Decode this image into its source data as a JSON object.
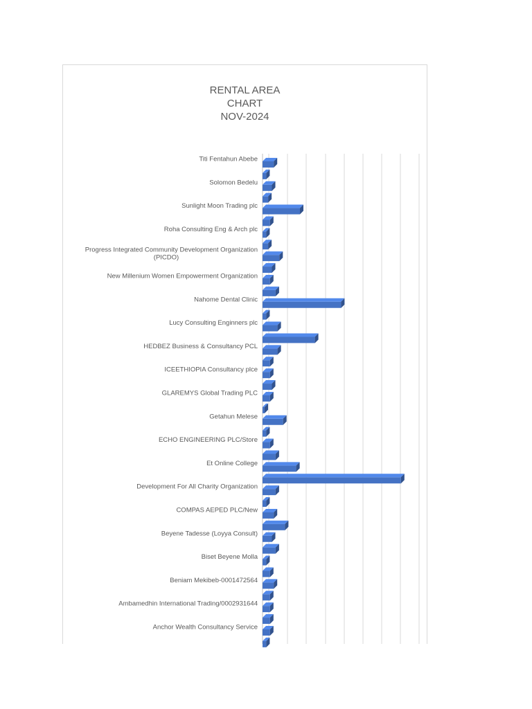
{
  "chart_data": {
    "type": "bar",
    "orientation": "horizontal",
    "style": "3d-clustered-bar",
    "title": [
      "RENTAL AREA",
      "CHART",
      "NOV-2024"
    ],
    "xlabel": "",
    "ylabel": "",
    "grid": true,
    "legend": "none",
    "xlim": [
      0,
      85
    ],
    "categories": [
      "Titi Fentahun Abebe",
      "",
      "Solomon Bedelu",
      "",
      "Sunlight Moon Trading plc",
      "",
      "Roha Consulting Eng & Arch plc",
      "",
      "Progress Integrated Community Development Organization (PICDO)",
      "",
      "New Millenium Women Empowerment Organization",
      "",
      "Nahome Dental Clinic",
      "",
      "Lucy Consulting Enginners plc",
      "",
      "HEDBEZ Business & Consultancy PCL",
      "",
      "ICEETHIOPIA Consultancy plce",
      "",
      "GLAREMYS Global Trading PLC",
      "",
      "Getahun Melese",
      "",
      "ECHO ENGINEERING PLC/Store",
      "",
      "Et Online College",
      "",
      "Development For All Charity Organization",
      "",
      "COMPAS AEPED PLC/New",
      "",
      "Beyene Tadesse (Loyya Consult)",
      "",
      "Biset Beyene Molla",
      "",
      "Beniam Mekibeb-0001472564",
      "",
      "Ambamedhin International Trading/0002931644",
      "",
      "Anchor Wealth Consultancy Service",
      ""
    ],
    "values": [
      6,
      2,
      5,
      3,
      20,
      4,
      2,
      3,
      9,
      5,
      4,
      7,
      42,
      2,
      8,
      28,
      8,
      4,
      4,
      5,
      4,
      1,
      11,
      2,
      4,
      7,
      18,
      74,
      7,
      2,
      6,
      12,
      5,
      7,
      2,
      4,
      6,
      4,
      4,
      4,
      4,
      2
    ],
    "color": "#4472C4"
  }
}
